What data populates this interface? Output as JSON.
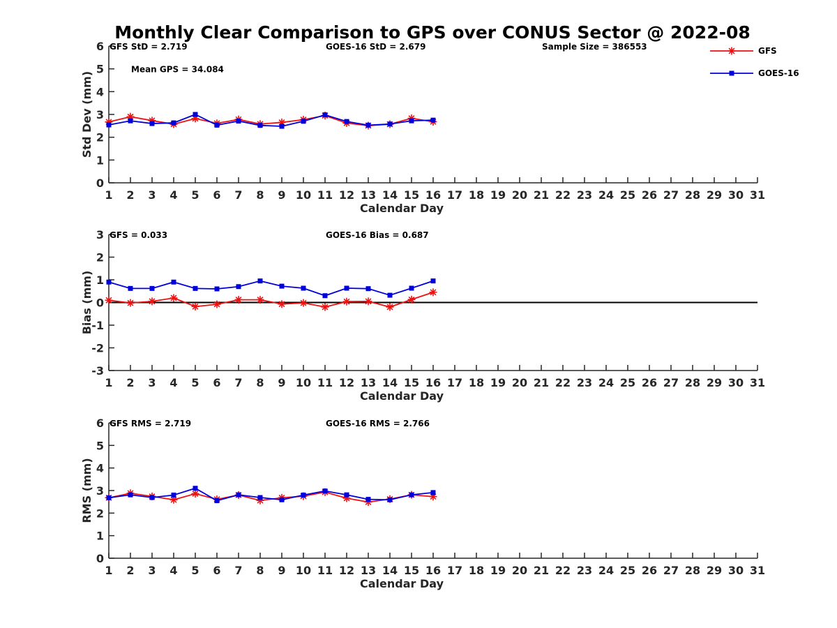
{
  "title": "Monthly Clear Comparison to GPS over CONUS Sector @ 2022-08",
  "colors": {
    "GFS": "#ee1111",
    "GOES-16": "#0000dd"
  },
  "legend": {
    "placement": "top-right",
    "items": [
      {
        "name": "GFS",
        "color": "#ee1111",
        "marker": "star"
      },
      {
        "name": "GOES-16",
        "color": "#0000dd",
        "marker": "square"
      }
    ]
  },
  "chart_data": [
    {
      "type": "line",
      "xlabel": "Calendar Day",
      "ylabel": "Std Dev (mm)",
      "xlim": [
        1,
        31
      ],
      "ylim": [
        0,
        6
      ],
      "yticks": [
        0,
        1,
        2,
        3,
        4,
        5,
        6
      ],
      "xticks": [
        1,
        2,
        3,
        4,
        5,
        6,
        7,
        8,
        9,
        10,
        11,
        12,
        13,
        14,
        15,
        16,
        17,
        18,
        19,
        20,
        21,
        22,
        23,
        24,
        25,
        26,
        27,
        28,
        29,
        30,
        31
      ],
      "annotations": [
        {
          "text": "GFS StD = 2.719",
          "x": 1,
          "y": 6
        },
        {
          "text": "GOES-16 StD = 2.679",
          "x": 11,
          "y": 6
        },
        {
          "text": "Sample Size = 386553",
          "x": 21,
          "y": 6
        },
        {
          "text": "Mean GPS = 34.084",
          "x": 2,
          "y": 5
        }
      ],
      "series": [
        {
          "name": "GFS",
          "x": [
            1,
            2,
            3,
            4,
            5,
            6,
            7,
            8,
            9,
            10,
            11,
            12,
            13,
            14,
            15,
            16
          ],
          "values": [
            2.67,
            2.9,
            2.73,
            2.57,
            2.82,
            2.61,
            2.78,
            2.58,
            2.65,
            2.77,
            2.95,
            2.62,
            2.51,
            2.57,
            2.83,
            2.68
          ]
        },
        {
          "name": "GOES-16",
          "x": [
            1,
            2,
            3,
            4,
            5,
            6,
            7,
            8,
            9,
            10,
            11,
            12,
            13,
            14,
            15,
            16
          ],
          "values": [
            2.54,
            2.72,
            2.6,
            2.63,
            3.0,
            2.53,
            2.71,
            2.52,
            2.48,
            2.7,
            2.98,
            2.69,
            2.53,
            2.58,
            2.72,
            2.75
          ]
        }
      ]
    },
    {
      "type": "line",
      "xlabel": "Calendar Day",
      "ylabel": "Bias (mm)",
      "xlim": [
        1,
        31
      ],
      "ylim": [
        -3,
        3
      ],
      "yticks": [
        -3,
        -2,
        -1,
        0,
        1,
        2,
        3
      ],
      "xticks": [
        1,
        2,
        3,
        4,
        5,
        6,
        7,
        8,
        9,
        10,
        11,
        12,
        13,
        14,
        15,
        16,
        17,
        18,
        19,
        20,
        21,
        22,
        23,
        24,
        25,
        26,
        27,
        28,
        29,
        30,
        31
      ],
      "reference_line": 0,
      "annotations": [
        {
          "text": "GFS = 0.033",
          "x": 1,
          "y": 3
        },
        {
          "text": "GOES-16 Bias = 0.687",
          "x": 11,
          "y": 3
        }
      ],
      "series": [
        {
          "name": "GFS",
          "x": [
            1,
            2,
            3,
            4,
            5,
            6,
            7,
            8,
            9,
            10,
            11,
            12,
            13,
            14,
            15,
            16
          ],
          "values": [
            0.1,
            -0.02,
            0.05,
            0.2,
            -0.18,
            -0.08,
            0.12,
            0.12,
            -0.07,
            -0.02,
            -0.2,
            0.04,
            0.05,
            -0.2,
            0.13,
            0.45
          ]
        },
        {
          "name": "GOES-16",
          "x": [
            1,
            2,
            3,
            4,
            5,
            6,
            7,
            8,
            9,
            10,
            11,
            12,
            13,
            14,
            15,
            16
          ],
          "values": [
            0.9,
            0.62,
            0.62,
            0.9,
            0.62,
            0.6,
            0.7,
            0.95,
            0.72,
            0.63,
            0.3,
            0.63,
            0.61,
            0.32,
            0.63,
            0.95
          ]
        }
      ]
    },
    {
      "type": "line",
      "xlabel": "Calendar Day",
      "ylabel": "RMS (mm)",
      "xlim": [
        1,
        31
      ],
      "ylim": [
        0,
        6
      ],
      "yticks": [
        0,
        1,
        2,
        3,
        4,
        5,
        6
      ],
      "xticks": [
        1,
        2,
        3,
        4,
        5,
        6,
        7,
        8,
        9,
        10,
        11,
        12,
        13,
        14,
        15,
        16,
        17,
        18,
        19,
        20,
        21,
        22,
        23,
        24,
        25,
        26,
        27,
        28,
        29,
        30,
        31
      ],
      "annotations": [
        {
          "text": "GFS RMS = 2.719",
          "x": 1,
          "y": 6
        },
        {
          "text": "GOES-16 RMS = 2.766",
          "x": 11,
          "y": 6
        }
      ],
      "series": [
        {
          "name": "GFS",
          "x": [
            1,
            2,
            3,
            4,
            5,
            6,
            7,
            8,
            9,
            10,
            11,
            12,
            13,
            14,
            15,
            16
          ],
          "values": [
            2.68,
            2.88,
            2.74,
            2.59,
            2.86,
            2.61,
            2.8,
            2.56,
            2.68,
            2.75,
            2.93,
            2.66,
            2.49,
            2.62,
            2.81,
            2.73
          ]
        },
        {
          "name": "GOES-16",
          "x": [
            1,
            2,
            3,
            4,
            5,
            6,
            7,
            8,
            9,
            10,
            11,
            12,
            13,
            14,
            15,
            16
          ],
          "values": [
            2.68,
            2.81,
            2.69,
            2.8,
            3.1,
            2.55,
            2.81,
            2.69,
            2.59,
            2.8,
            2.98,
            2.81,
            2.61,
            2.59,
            2.81,
            2.91
          ]
        }
      ]
    }
  ]
}
